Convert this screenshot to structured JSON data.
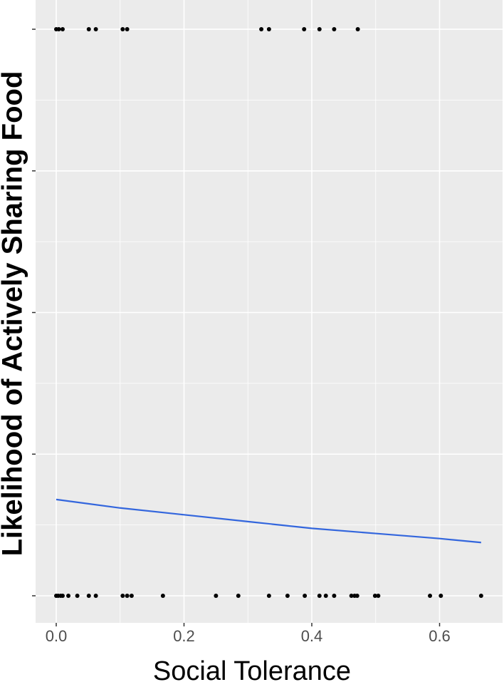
{
  "chart_data": {
    "type": "scatter",
    "x_label": "Social Tolerance",
    "y_label": "Likelihood of Actively Sharing Food",
    "xlim": [
      -0.0323,
      0.6986
    ],
    "ylim": [
      -0.0478,
      1.0516
    ],
    "xticks": [
      {
        "value": 0,
        "label": "0.0"
      },
      0.2,
      0.4,
      0.6
    ],
    "x_minor_grid": [
      0.1,
      0.3,
      0.5
    ],
    "yticks": [
      0,
      0.25,
      0.5,
      0.75,
      1
    ],
    "y_minor_grid": [
      0.125,
      0.375,
      0.625,
      0.875
    ],
    "ytick_labels": false,
    "grid": true,
    "points": {
      "color": "#000000",
      "x": [
        0,
        0.004,
        0.01,
        0.051,
        0.062,
        0.104,
        0.111,
        0.321,
        0.333,
        0.388,
        0.412,
        0.435,
        0.472,
        0,
        0.003,
        0.007,
        0.01,
        0.019,
        0.033,
        0.051,
        0.062,
        0.104,
        0.111,
        0.118,
        0.167,
        0.25,
        0.285,
        0.333,
        0.362,
        0.389,
        0.412,
        0.422,
        0.435,
        0.462,
        0.467,
        0.471,
        0.499,
        0.504,
        0.585,
        0.602,
        0.665
      ],
      "y": [
        1,
        1,
        1,
        1,
        1,
        1,
        1,
        1,
        1,
        1,
        1,
        1,
        1,
        0,
        0,
        0,
        0,
        0,
        0,
        0,
        0,
        0,
        0,
        0,
        0,
        0,
        0,
        0,
        0,
        0,
        0,
        0,
        0,
        0,
        0,
        0,
        0,
        0,
        0,
        0,
        0
      ]
    },
    "fit": {
      "color": "#3366dd",
      "x": [
        0,
        0.1,
        0.2,
        0.3,
        0.4,
        0.5,
        0.6,
        0.665
      ],
      "y": [
        0.17,
        0.155,
        0.143,
        0.131,
        0.119,
        0.11,
        0.101,
        0.094
      ]
    }
  }
}
